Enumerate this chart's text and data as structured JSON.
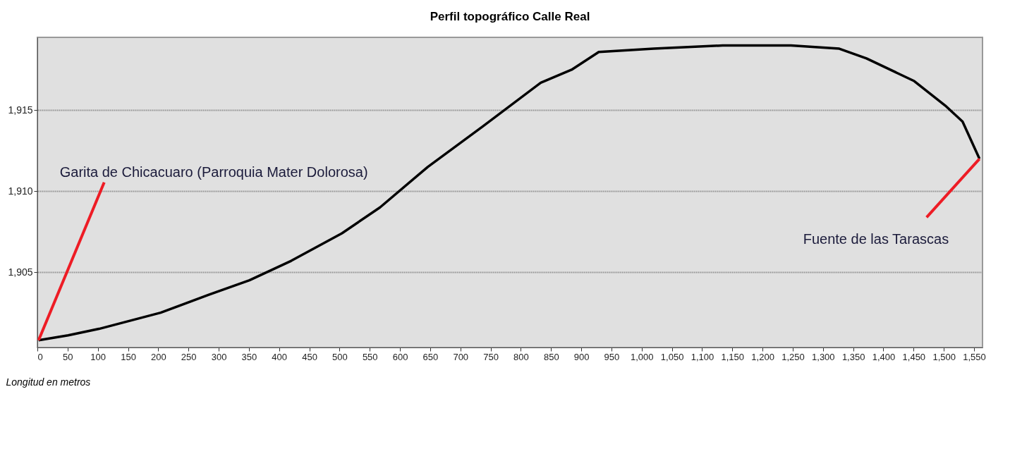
{
  "chart_data": {
    "type": "line",
    "title": "Perfil topográfico Calle Real",
    "xlabel": "Longitud en metros",
    "x": [
      2,
      51,
      102,
      204,
      283,
      351,
      420,
      504,
      567,
      646,
      737,
      833,
      884,
      929,
      1020,
      1134,
      1247,
      1327,
      1372,
      1451,
      1502,
      1531,
      1559
    ],
    "series": [
      {
        "color": "#000000",
        "values": [
          1900.8,
          1901.1,
          1901.5,
          1902.5,
          1903.6,
          1904.5,
          1905.7,
          1907.4,
          1909.0,
          1911.5,
          1914.0,
          1916.7,
          1917.5,
          1918.6,
          1918.8,
          1919.0,
          1919.0,
          1918.8,
          1918.2,
          1916.8,
          1915.3,
          1914.3,
          1912.0
        ]
      }
    ],
    "xlim": [
      0,
      1564
    ],
    "xticks": [
      0,
      50,
      100,
      150,
      200,
      250,
      300,
      350,
      400,
      450,
      500,
      550,
      600,
      650,
      700,
      750,
      800,
      850,
      900,
      950,
      {
        "value": 1000,
        "label": "1,000"
      },
      {
        "value": 1050,
        "label": "1,050"
      },
      {
        "value": 1100,
        "label": "1,100"
      },
      {
        "value": 1150,
        "label": "1,150"
      },
      {
        "value": 1200,
        "label": "1,200"
      },
      {
        "value": 1250,
        "label": "1,250"
      },
      {
        "value": 1300,
        "label": "1,300"
      },
      {
        "value": 1350,
        "label": "1,350"
      },
      {
        "value": 1400,
        "label": "1,400"
      },
      {
        "value": 1450,
        "label": "1,450"
      },
      {
        "value": 1500,
        "label": "1,500"
      },
      {
        "value": 1550,
        "label": "1,550"
      }
    ],
    "ylim": [
      1900.35,
      1919.5
    ],
    "yticks": [
      {
        "value": 1905,
        "label": "1,905"
      },
      {
        "value": 1910,
        "label": "1,910"
      },
      {
        "value": 1915,
        "label": "1,915"
      }
    ],
    "grid": "y",
    "legend": false,
    "marker": "none",
    "line_style": "solid",
    "annotations": [
      {
        "text": "Garita de Chicacuaro (Parroquia Mater Dolorosa)",
        "x": 2,
        "y": 1900.8
      },
      {
        "text": "Fuente de las Tarascas",
        "x": 1559,
        "y": 1912.0
      }
    ]
  }
}
